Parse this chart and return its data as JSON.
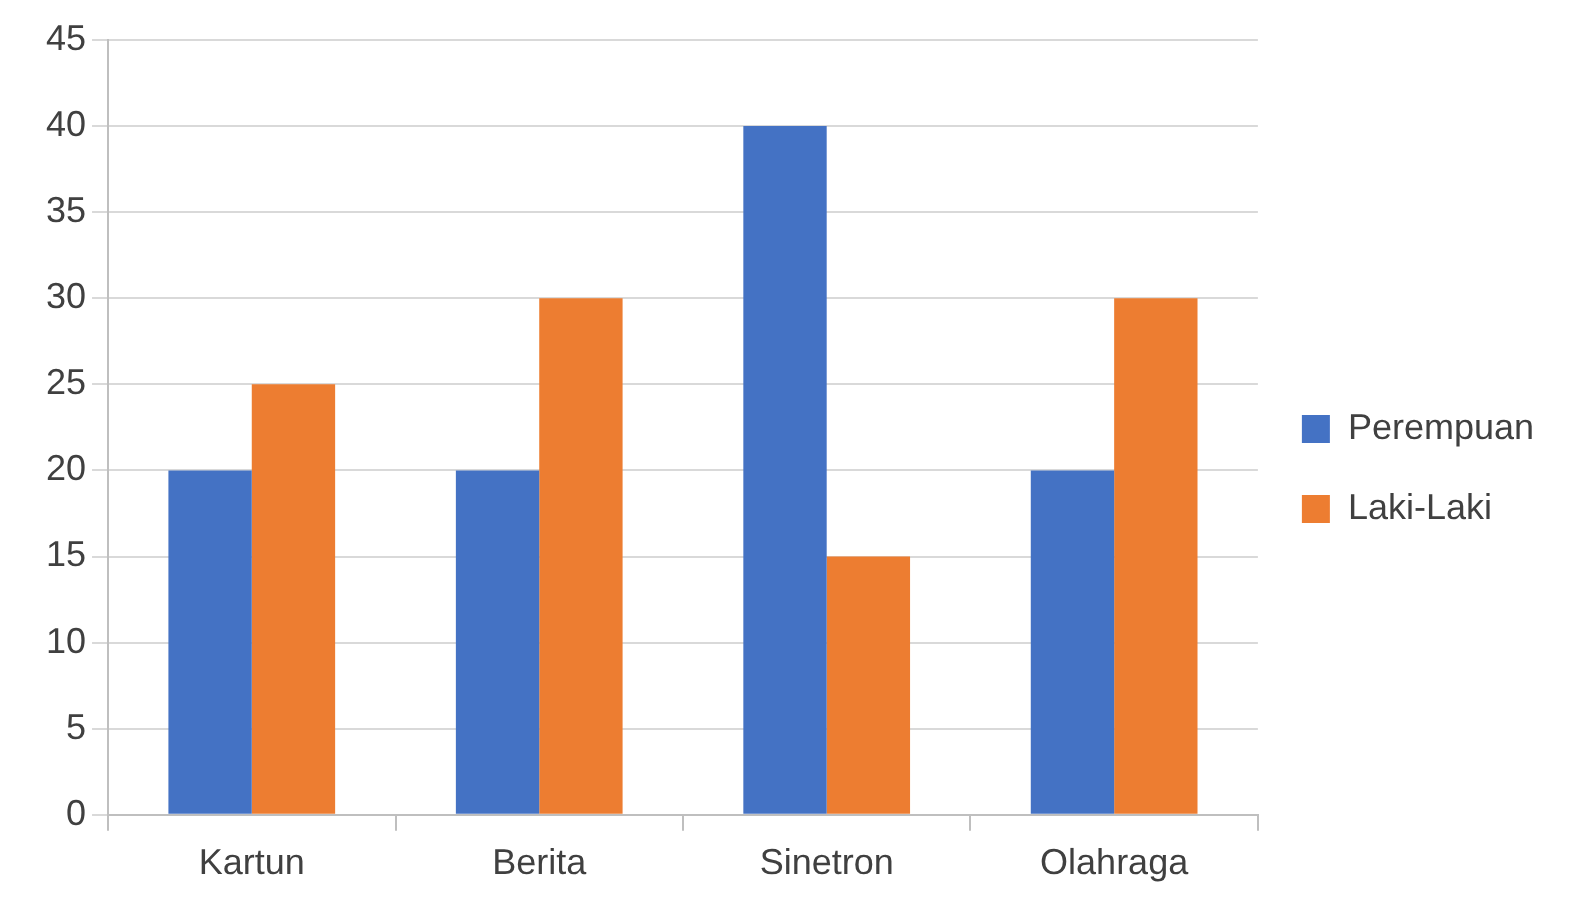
{
  "chart_data": {
    "type": "bar",
    "categories": [
      "Kartun",
      "Berita",
      "Sinetron",
      "Olahraga"
    ],
    "series": [
      {
        "name": "Perempuan",
        "color": "#4472c4",
        "values": [
          20,
          20,
          40,
          20
        ]
      },
      {
        "name": "Laki-Laki",
        "color": "#ed7d31",
        "values": [
          25,
          30,
          15,
          30
        ]
      }
    ],
    "ylim": [
      0,
      45
    ],
    "yticks": [
      0,
      5,
      10,
      15,
      20,
      25,
      30,
      35,
      40,
      45
    ],
    "grid": "y",
    "legend": "right"
  }
}
